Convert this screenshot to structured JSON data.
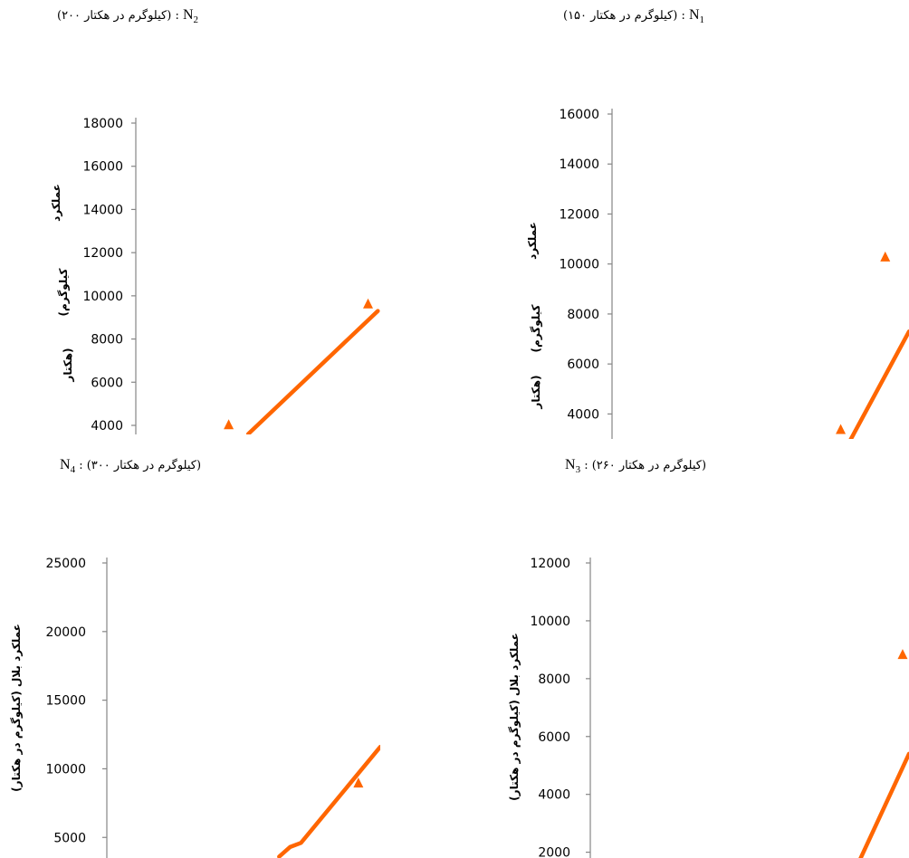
{
  "captions": {
    "n2": {
      "text": "(۲۰۰ کیلوگرم در هکتار) :",
      "n": "N",
      "sub": "2"
    },
    "n1": {
      "text": "(۱۵۰ کیلوگرم در هکتار) :",
      "n": "N",
      "sub": "1"
    },
    "n4": {
      "text": ": (۳۰۰ کیلوگرم در هکتار)",
      "n": "N",
      "sub": "4"
    },
    "n3": {
      "text": ": (۲۶۰ کیلوگرم در هکتار)",
      "n": "N",
      "sub": "3"
    }
  },
  "colors": {
    "series": "#ff6600",
    "axis": "#868686"
  },
  "chart_data": [
    {
      "id": "n2",
      "type": "line",
      "ylim": [
        4000,
        18000
      ],
      "ticks": [
        4000,
        6000,
        8000,
        10000,
        12000,
        14000,
        16000,
        18000
      ],
      "ylabel_parts": [
        "عملکرد",
        "(کیلوگرم",
        "هکتار)"
      ],
      "series": [
        {
          "kind": "line",
          "points": [
            {
              "x": 0.46,
              "y": 3600
            },
            {
              "x": 0.99,
              "y": 9300
            }
          ]
        },
        {
          "kind": "marker",
          "points": [
            {
              "x": 0.38,
              "y": 4050
            },
            {
              "x": 0.95,
              "y": 9650
            }
          ]
        }
      ]
    },
    {
      "id": "n1",
      "type": "line",
      "ylim": [
        3000,
        16000
      ],
      "ticks": [
        4000,
        6000,
        8000,
        10000,
        12000,
        14000,
        16000
      ],
      "ylabel_parts": [
        "عملکرد",
        "(کیلوگرم",
        "هکتار)"
      ],
      "series": [
        {
          "kind": "line",
          "points": [
            {
              "x": 0.8,
              "y": 2900
            },
            {
              "x": 1.0,
              "y": 7300
            }
          ]
        },
        {
          "kind": "marker",
          "points": [
            {
              "x": 0.77,
              "y": 3400
            },
            {
              "x": 0.92,
              "y": 10300
            }
          ]
        }
      ]
    },
    {
      "id": "n4",
      "type": "line",
      "ylim": [
        3500,
        25000
      ],
      "ticks": [
        5000,
        10000,
        15000,
        20000,
        25000
      ],
      "ylabel": "عملکرد بلال (کیلوگرم در هکتار)",
      "series": [
        {
          "kind": "line",
          "points": [
            {
              "x": 0.63,
              "y": 3600
            },
            {
              "x": 0.67,
              "y": 4300
            },
            {
              "x": 0.71,
              "y": 4600
            },
            {
              "x": 1.0,
              "y": 11600
            }
          ]
        },
        {
          "kind": "marker",
          "points": [
            {
              "x": 0.92,
              "y": 9000
            }
          ]
        }
      ]
    },
    {
      "id": "n3",
      "type": "line",
      "ylim": [
        1800,
        12000
      ],
      "ticks": [
        2000,
        4000,
        6000,
        8000,
        10000,
        12000
      ],
      "ylabel": "عملکرد بلال (کیلوگرم در هکتار)",
      "series": [
        {
          "kind": "line",
          "points": [
            {
              "x": 0.84,
              "y": 1600
            },
            {
              "x": 1.0,
              "y": 5400
            }
          ]
        },
        {
          "kind": "marker",
          "points": [
            {
              "x": 0.98,
              "y": 8850
            }
          ]
        }
      ]
    }
  ]
}
